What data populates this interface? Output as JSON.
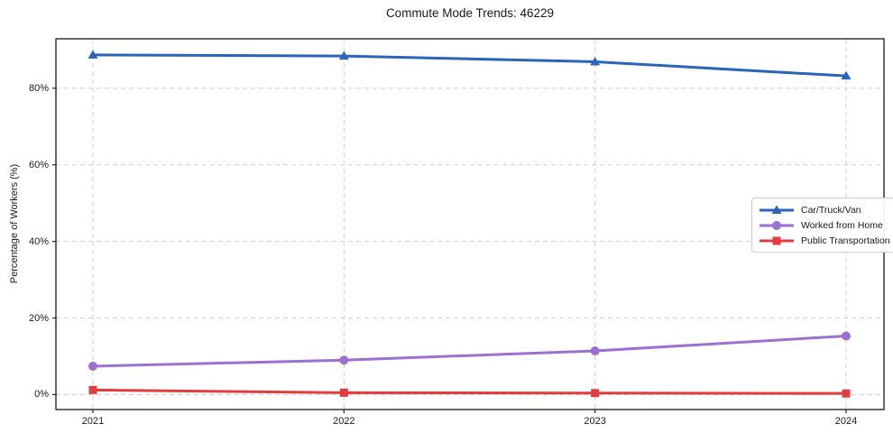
{
  "chart_data": {
    "type": "line",
    "title": "Commute Mode Trends: 46229",
    "xlabel": "",
    "ylabel": "Percentage of Workers (%)",
    "categories": [
      "2021",
      "2022",
      "2023",
      "2024"
    ],
    "x": [
      2021,
      2022,
      2023,
      2024
    ],
    "series": [
      {
        "name": "Car/Truck/Van",
        "values": [
          88.7,
          88.4,
          86.9,
          83.2
        ],
        "color": "#2a65bb",
        "marker": "triangle"
      },
      {
        "name": "Worked from Home",
        "values": [
          7.4,
          9.0,
          11.4,
          15.3
        ],
        "color": "#9e6fd2",
        "marker": "circle"
      },
      {
        "name": "Public Transportation",
        "values": [
          1.2,
          0.5,
          0.4,
          0.3
        ],
        "color": "#e23c3f",
        "marker": "square"
      }
    ],
    "ylim": [
      -3.9,
      92.9
    ],
    "y_ticks": [
      0,
      20,
      40,
      60,
      80
    ],
    "y_tick_labels": [
      "0%",
      "20%",
      "40%",
      "60%",
      "80%"
    ],
    "grid": "dashed",
    "grid_color": "#cfcfcf",
    "spine_color": "#262626",
    "legend_position": "center right"
  }
}
